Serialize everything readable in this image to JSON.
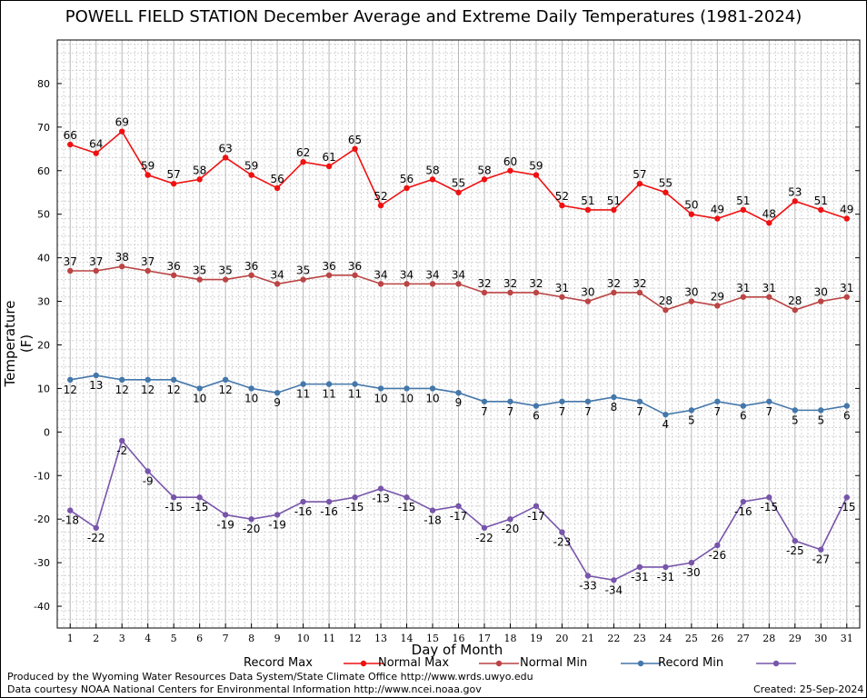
{
  "chart_data": {
    "type": "line",
    "title": "POWELL FIELD STATION December Average and Extreme Daily Temperatures (1981-2024)",
    "xlabel": "Day of Month",
    "ylabel": "Temperature (F)",
    "x": [
      1,
      2,
      3,
      4,
      5,
      6,
      7,
      8,
      9,
      10,
      11,
      12,
      13,
      14,
      15,
      16,
      17,
      18,
      19,
      20,
      21,
      22,
      23,
      24,
      25,
      26,
      27,
      28,
      29,
      30,
      31
    ],
    "xlim": [
      0.5,
      31.5
    ],
    "ylim": [
      -45,
      90
    ],
    "yticks": [
      -40,
      -30,
      -20,
      -10,
      0,
      10,
      20,
      30,
      40,
      50,
      60,
      70,
      80
    ],
    "grid": true,
    "legend_position": "bottom",
    "series": [
      {
        "name": "Record Max",
        "color": "#ee1111",
        "label_position": "above",
        "values": [
          66,
          64,
          69,
          59,
          57,
          58,
          63,
          59,
          56,
          62,
          61,
          65,
          52,
          56,
          58,
          55,
          58,
          60,
          59,
          52,
          51,
          51,
          57,
          55,
          50,
          49,
          51,
          48,
          53,
          51,
          49
        ]
      },
      {
        "name": "Normal Max",
        "color": "#bb4444",
        "label_position": "above",
        "values": [
          37,
          37,
          38,
          37,
          36,
          35,
          35,
          36,
          34,
          35,
          36,
          36,
          34,
          34,
          34,
          34,
          32,
          32,
          32,
          31,
          30,
          32,
          32,
          28,
          30,
          29,
          31,
          31,
          28,
          30,
          31
        ]
      },
      {
        "name": "Normal Min",
        "color": "#4477aa",
        "label_position": "below",
        "values": [
          12,
          13,
          12,
          12,
          12,
          10,
          12,
          10,
          9,
          11,
          11,
          11,
          10,
          10,
          10,
          9,
          7,
          7,
          6,
          7,
          7,
          8,
          7,
          4,
          5,
          7,
          6,
          7,
          5,
          5,
          6
        ]
      },
      {
        "name": "Record Min",
        "color": "#7755aa",
        "label_position": "below",
        "values": [
          -18,
          -22,
          -2,
          -9,
          -15,
          -15,
          -19,
          -20,
          -19,
          -16,
          -16,
          -15,
          -13,
          -15,
          -18,
          -17,
          -22,
          -20,
          -17,
          -23,
          -33,
          -34,
          -31,
          -31,
          -30,
          -26,
          -16,
          -15,
          -25,
          -27,
          -15
        ]
      }
    ]
  },
  "footer": {
    "credit_line1": "Produced by the Wyoming Water Resources Data System/State Climate Office http://www.wrds.uwyo.edu",
    "credit_line2": "Data courtesy NOAA National Centers for Environmental Information http://www.ncei.noaa.gov",
    "created": "Created:  25-Sep-2024"
  }
}
